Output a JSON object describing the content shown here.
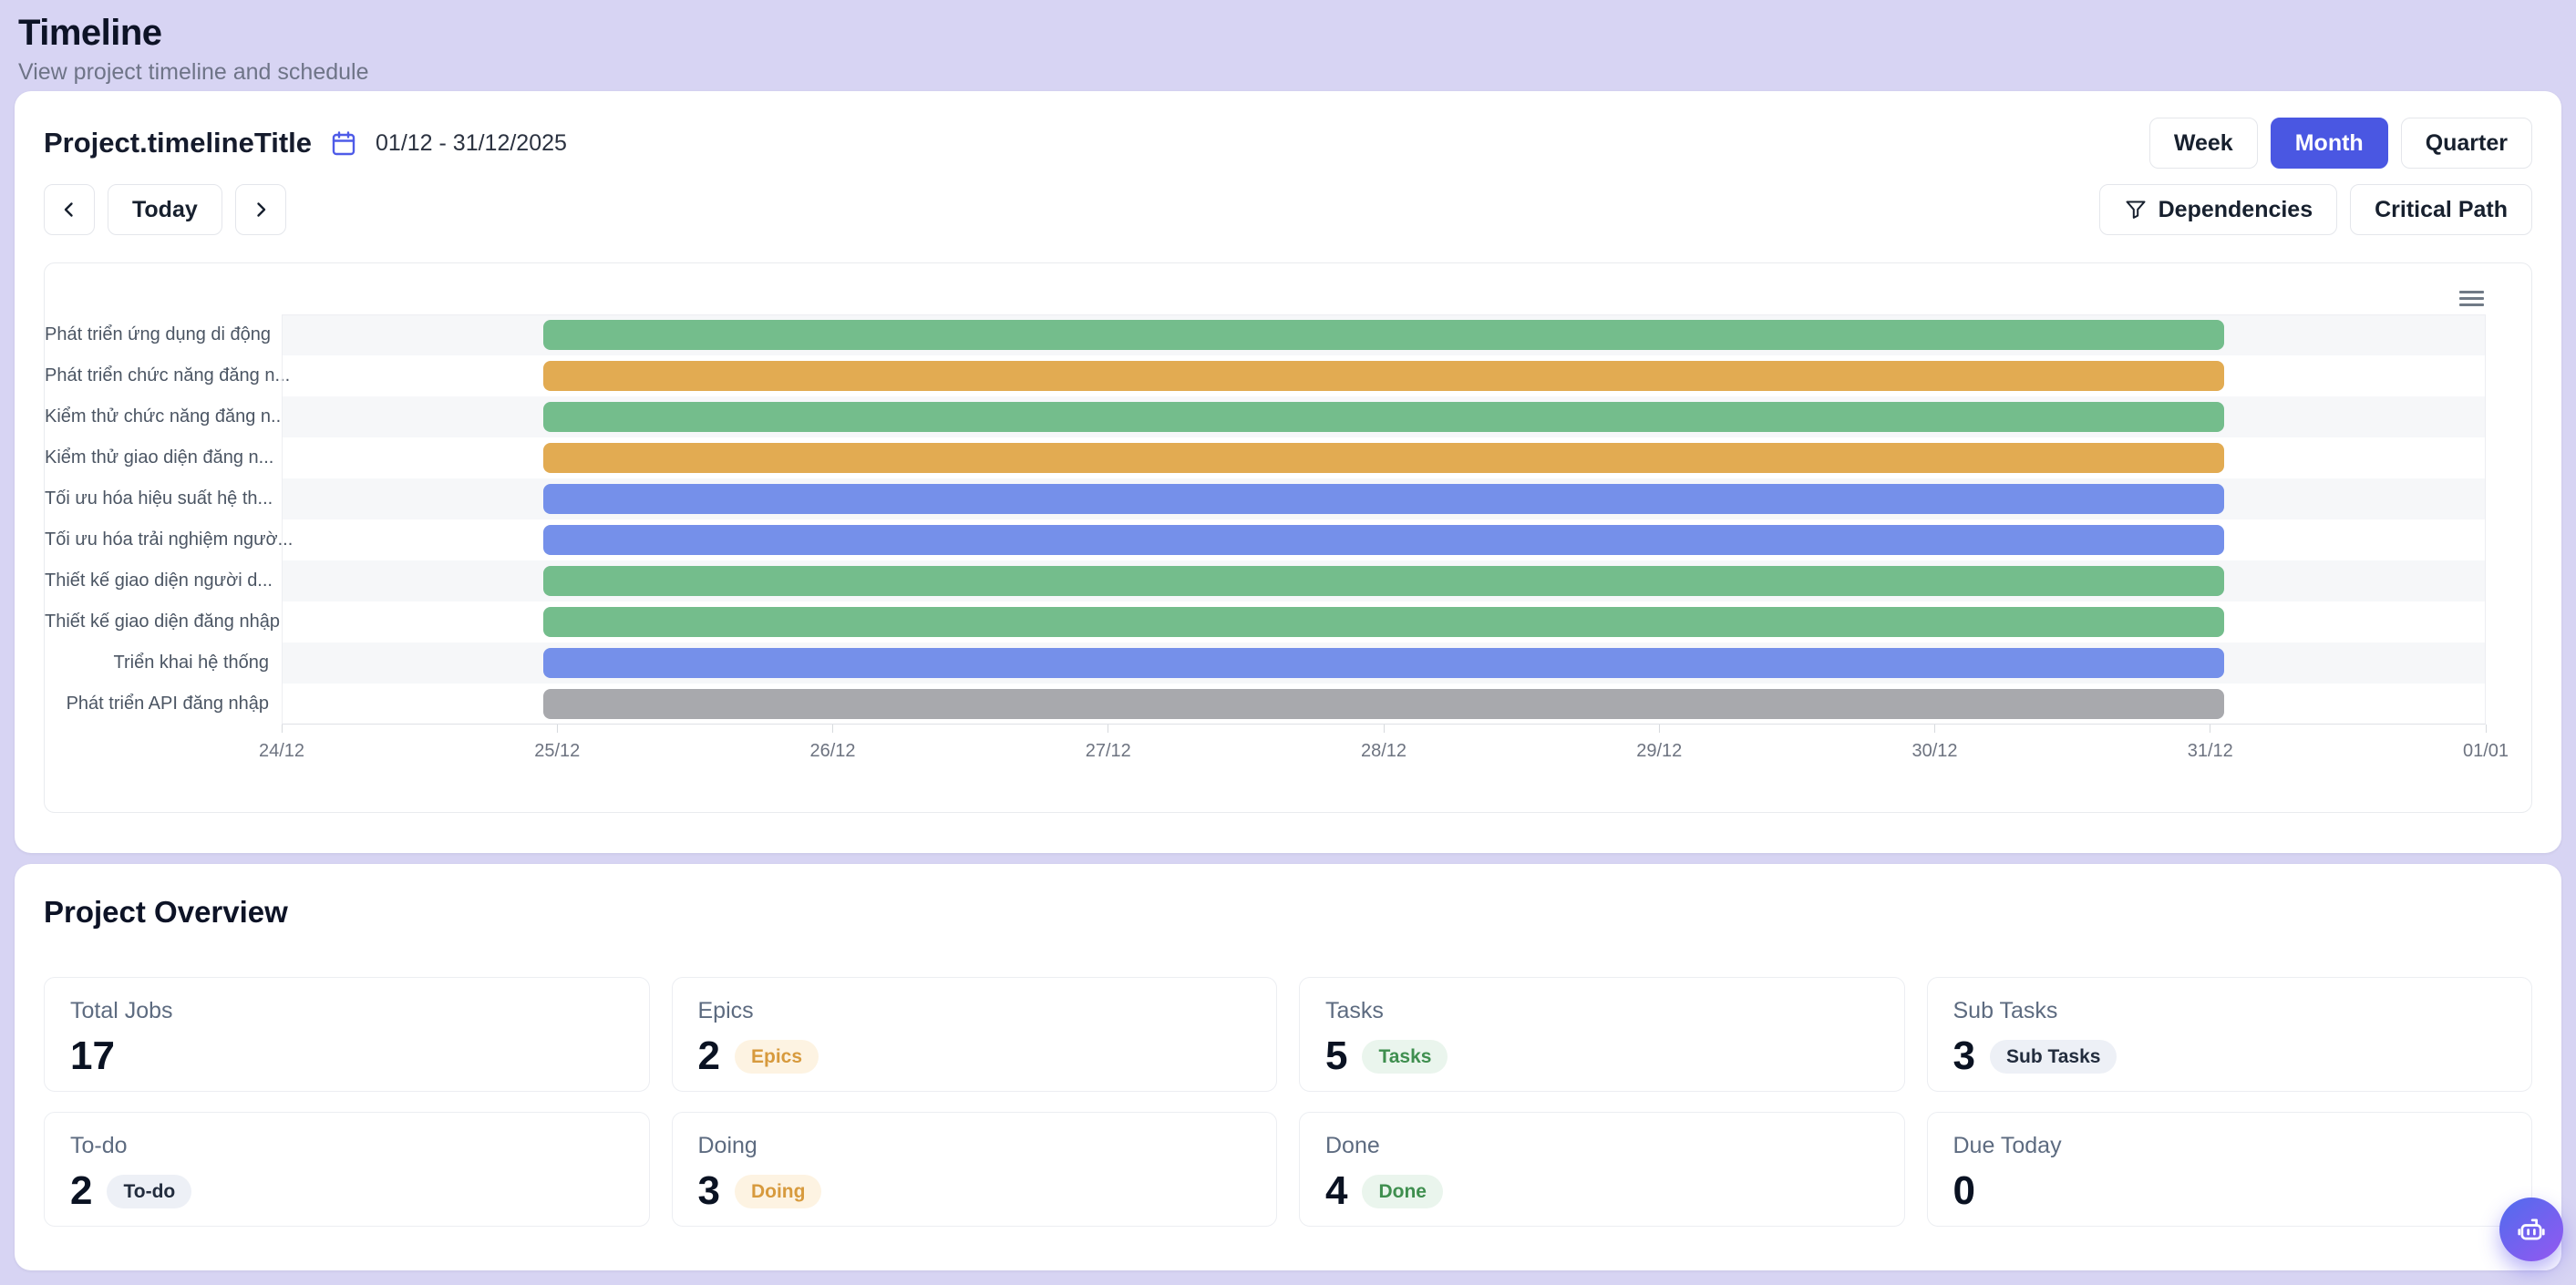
{
  "page": {
    "title": "Timeline",
    "subtitle": "View project timeline and schedule"
  },
  "timeline": {
    "title": "Project.timelineTitle",
    "date_range": "01/12 - 31/12/2025",
    "view_modes": [
      {
        "label": "Week",
        "active": false
      },
      {
        "label": "Month",
        "active": true
      },
      {
        "label": "Quarter",
        "active": false
      }
    ],
    "today_label": "Today",
    "dependencies_label": "Dependencies",
    "critical_path_label": "Critical Path"
  },
  "chart_data": {
    "type": "bar",
    "subtype": "gantt",
    "title": "",
    "xlabel": "",
    "ylabel": "",
    "legend": false,
    "axis": {
      "start_label": "24/12",
      "end_label": "01/01",
      "total_days": 8
    },
    "x_ticks": [
      "24/12",
      "25/12",
      "26/12",
      "27/12",
      "28/12",
      "29/12",
      "30/12",
      "31/12",
      "01/01"
    ],
    "bar_span": {
      "start_day": 0.95,
      "end_day": 7.05,
      "start_label": "25/12",
      "end_label": "31/12"
    },
    "tasks": [
      {
        "label": "Phát triển ứng dụng di động",
        "color": "#74bd8c"
      },
      {
        "label": "Phát triển chức năng đăng n...",
        "color": "#e2ab52"
      },
      {
        "label": "Kiểm thử chức năng đăng n...",
        "color": "#74bd8c"
      },
      {
        "label": "Kiểm thử giao diện đăng n...",
        "color": "#e2ab52"
      },
      {
        "label": "Tối ưu hóa hiệu suất hệ th...",
        "color": "#7590ea"
      },
      {
        "label": "Tối ưu hóa trải nghiệm ngườ...",
        "color": "#7590ea"
      },
      {
        "label": "Thiết kế giao diện người d...",
        "color": "#74bd8c"
      },
      {
        "label": "Thiết kế giao diện đăng nhập",
        "color": "#74bd8c"
      },
      {
        "label": "Triển khai hệ thống",
        "color": "#7590ea"
      },
      {
        "label": "Phát triển API đăng nhập",
        "color": "#a8a9ad"
      }
    ]
  },
  "overview": {
    "heading": "Project Overview",
    "cards": [
      {
        "label": "Total Jobs",
        "value": "17"
      },
      {
        "label": "Epics",
        "value": "2",
        "badge": "Epics",
        "badge_style": "orange"
      },
      {
        "label": "Tasks",
        "value": "5",
        "badge": "Tasks",
        "badge_style": "green"
      },
      {
        "label": "Sub Tasks",
        "value": "3",
        "badge": "Sub Tasks",
        "badge_style": "neutral"
      },
      {
        "label": "To-do",
        "value": "2",
        "badge": "To-do",
        "badge_style": "neutral"
      },
      {
        "label": "Doing",
        "value": "3",
        "badge": "Doing",
        "badge_style": "orange"
      },
      {
        "label": "Done",
        "value": "4",
        "badge": "Done",
        "badge_style": "green"
      },
      {
        "label": "Due Today",
        "value": "0"
      }
    ]
  },
  "colors": {
    "accent": "#4a57e2",
    "page_bg": "#d7d4f3",
    "bar_green": "#74bd8c",
    "bar_orange": "#e2ab52",
    "bar_blue": "#7590ea",
    "bar_gray": "#a8a9ad"
  }
}
